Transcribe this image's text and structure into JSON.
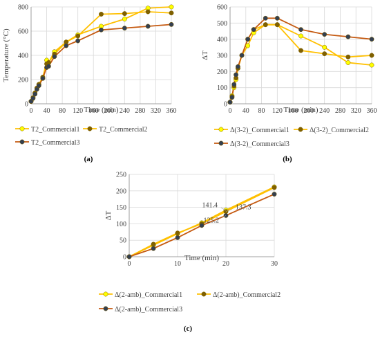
{
  "charts": [
    {
      "id": "a",
      "type": "line",
      "panel_label": "(a)",
      "xlabel": "Time (min)",
      "ylabel": "Temperature (°C)",
      "xlim": [
        0,
        360
      ],
      "ylim": [
        0,
        800
      ],
      "xticks": [
        0,
        40,
        80,
        120,
        160,
        200,
        240,
        280,
        320,
        360
      ],
      "yticks": [
        0,
        200,
        400,
        600,
        800
      ],
      "legend_position": "bottom",
      "series": [
        {
          "name": "T2_Commercial1",
          "color": "#ffc000",
          "marker": "#ffff00",
          "x": [
            0,
            5,
            10,
            15,
            20,
            30,
            40,
            45,
            60,
            90,
            120,
            180,
            240,
            300,
            360
          ],
          "y": [
            20,
            50,
            90,
            130,
            160,
            210,
            360,
            340,
            430,
            510,
            570,
            640,
            700,
            790,
            800
          ]
        },
        {
          "name": "T2_Commercial2",
          "color": "#ffc000",
          "marker": "#7f6000",
          "x": [
            0,
            5,
            10,
            15,
            20,
            30,
            40,
            45,
            60,
            90,
            120,
            180,
            240,
            300,
            360
          ],
          "y": [
            20,
            50,
            90,
            130,
            160,
            220,
            330,
            340,
            410,
            510,
            560,
            740,
            745,
            760,
            750
          ]
        },
        {
          "name": "T2_Commercial3",
          "color": "#c55a11",
          "marker": "#333f50",
          "x": [
            0,
            5,
            10,
            15,
            20,
            30,
            40,
            45,
            60,
            90,
            120,
            180,
            240,
            300,
            360
          ],
          "y": [
            20,
            45,
            80,
            120,
            150,
            210,
            300,
            310,
            390,
            480,
            520,
            610,
            625,
            640,
            655
          ]
        }
      ]
    },
    {
      "id": "b",
      "type": "line",
      "panel_label": "(b)",
      "xlabel": "Time (min)",
      "ylabel": "ΔT",
      "xlim": [
        0,
        360
      ],
      "ylim": [
        0,
        600
      ],
      "xticks": [
        0,
        40,
        80,
        120,
        160,
        200,
        240,
        280,
        320,
        360
      ],
      "yticks": [
        0,
        100,
        200,
        300,
        400,
        500,
        600
      ],
      "legend_position": "bottom",
      "series": [
        {
          "name": "Δ(3-2)_Commercial1",
          "color": "#ffc000",
          "marker": "#ffff00",
          "x": [
            0,
            5,
            10,
            15,
            20,
            30,
            45,
            60,
            90,
            120,
            180,
            240,
            300,
            360
          ],
          "y": [
            10,
            50,
            100,
            150,
            220,
            300,
            360,
            440,
            490,
            490,
            420,
            350,
            255,
            240
          ]
        },
        {
          "name": "Δ(3-2)_Commercial2",
          "color": "#ffc000",
          "marker": "#7f6000",
          "x": [
            0,
            5,
            10,
            15,
            20,
            30,
            45,
            60,
            90,
            120,
            180,
            240,
            300,
            360
          ],
          "y": [
            10,
            45,
            110,
            160,
            220,
            300,
            400,
            460,
            490,
            490,
            330,
            310,
            290,
            300
          ]
        },
        {
          "name": "Δ(3-2)_Commercial3",
          "color": "#c55a11",
          "marker": "#333f50",
          "x": [
            0,
            5,
            10,
            15,
            20,
            30,
            45,
            60,
            90,
            120,
            180,
            240,
            300,
            360
          ],
          "y": [
            10,
            40,
            120,
            180,
            230,
            300,
            400,
            460,
            530,
            530,
            460,
            430,
            415,
            400
          ]
        }
      ]
    },
    {
      "id": "c",
      "type": "line",
      "panel_label": "(c)",
      "xlabel": "Time (min)",
      "ylabel": "ΔT",
      "xlim": [
        0,
        30
      ],
      "ylim": [
        0,
        250
      ],
      "xticks": [
        0,
        10,
        20,
        30
      ],
      "yticks": [
        0,
        50,
        100,
        150,
        200,
        250
      ],
      "legend_position": "bottom",
      "annotations": [
        {
          "text": "141.4",
          "x": 20,
          "y": 141.4
        },
        {
          "text": "137.3",
          "x": 20,
          "y": 137.3
        },
        {
          "text": "125.2",
          "x": 20,
          "y": 125.2
        }
      ],
      "series": [
        {
          "name": "Δ(2-amb)_Commercial1",
          "color": "#ffc000",
          "marker": "#ffff00",
          "x": [
            0,
            5,
            10,
            15,
            20,
            30
          ],
          "y": [
            0,
            35,
            70,
            103,
            141.4,
            212
          ]
        },
        {
          "name": "Δ(2-amb)_Commercial2",
          "color": "#ffc000",
          "marker": "#7f6000",
          "x": [
            0,
            5,
            10,
            15,
            20,
            30
          ],
          "y": [
            0,
            38,
            72,
            100,
            137.3,
            210
          ]
        },
        {
          "name": "Δ(2-amb)_Commercial3",
          "color": "#c55a11",
          "marker": "#333f50",
          "x": [
            0,
            5,
            10,
            15,
            20,
            30
          ],
          "y": [
            0,
            25,
            58,
            95,
            125.2,
            190
          ]
        }
      ]
    }
  ]
}
